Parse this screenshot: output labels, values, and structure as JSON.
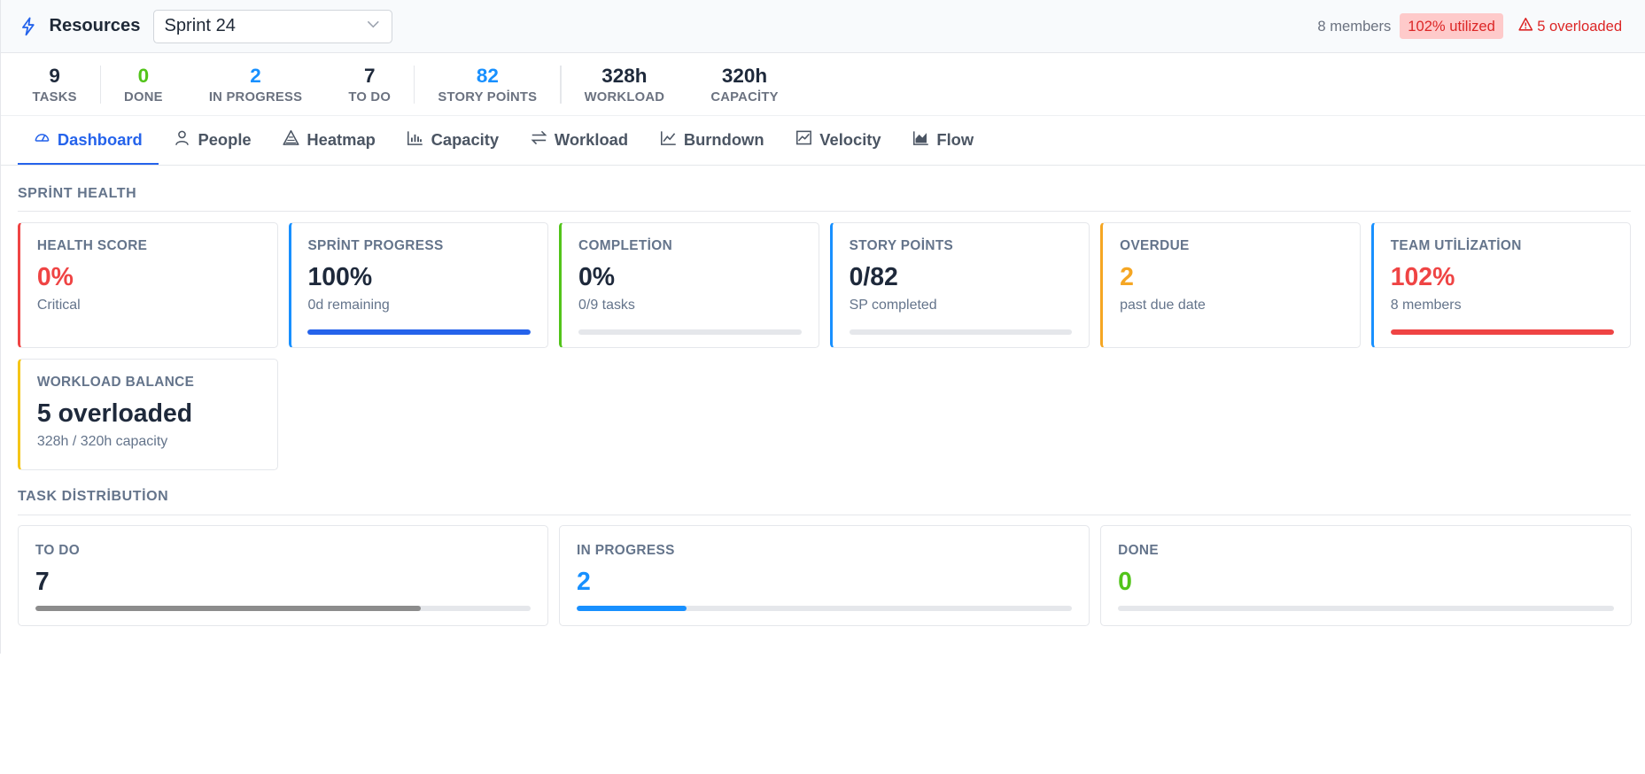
{
  "header": {
    "title": "Resources",
    "sprint_select": "Sprint 24",
    "members": "8 members",
    "utilized": "102% utilized",
    "overloaded": "5 overloaded"
  },
  "stats": [
    {
      "value": "9",
      "label": "TASKS",
      "color": "#1e293b"
    },
    {
      "value": "0",
      "label": "DONE",
      "color": "#52c41a"
    },
    {
      "value": "2",
      "label": "IN PROGRESS",
      "color": "#1890ff"
    },
    {
      "value": "7",
      "label": "TO DO",
      "color": "#1e293b"
    },
    {
      "value": "82",
      "label": "STORY POİNTS",
      "color": "#1890ff"
    },
    {
      "value": "328h",
      "label": "WORKLOAD",
      "color": "#1e293b"
    },
    {
      "value": "320h",
      "label": "CAPACİTY",
      "color": "#1e293b"
    }
  ],
  "tabs": [
    {
      "label": "Dashboard",
      "icon": "dashboard-icon"
    },
    {
      "label": "People",
      "icon": "user-icon"
    },
    {
      "label": "Heatmap",
      "icon": "heatmap-icon"
    },
    {
      "label": "Capacity",
      "icon": "bar-chart-icon"
    },
    {
      "label": "Workload",
      "icon": "swap-icon"
    },
    {
      "label": "Burndown",
      "icon": "line-chart-icon"
    },
    {
      "label": "Velocity",
      "icon": "stock-icon"
    },
    {
      "label": "Flow",
      "icon": "area-chart-icon"
    }
  ],
  "health": {
    "title": "SPRİNT HEALTH",
    "cards": [
      {
        "label": "HEALTH SCORE",
        "value": "0%",
        "sub": "Critical",
        "accent": "#ef4444",
        "value_color": "#ef4444",
        "bar": null
      },
      {
        "label": "SPRİNT PROGRESS",
        "value": "100%",
        "sub": "0d remaining",
        "accent": "#1890ff",
        "value_color": "#1e293b",
        "bar": 1.0,
        "bar_color": "#2563eb"
      },
      {
        "label": "COMPLETİON",
        "value": "0%",
        "sub": "0/9 tasks",
        "accent": "#52c41a",
        "value_color": "#1e293b",
        "bar": 0,
        "bar_color": "#52c41a"
      },
      {
        "label": "STORY POİNTS",
        "value": "0/82",
        "sub": "SP completed",
        "accent": "#1890ff",
        "value_color": "#1e293b",
        "bar": 0,
        "bar_color": "#1890ff"
      },
      {
        "label": "OVERDUE",
        "value": "2",
        "sub": "past due date",
        "accent": "#f5a623",
        "value_color": "#f5a623",
        "bar": null
      },
      {
        "label": "TEAM UTİLİZATİON",
        "value": "102%",
        "sub": "8 members",
        "accent": "#1890ff",
        "value_color": "#ef4444",
        "bar": 1.0,
        "bar_color": "#ef4444"
      },
      {
        "label": "WORKLOAD BALANCE",
        "value": "5 overloaded",
        "sub": "328h / 320h capacity",
        "accent": "#f5c518",
        "value_color": "#1e293b",
        "bar": null
      }
    ]
  },
  "distribution": {
    "title": "TASK DİSTRİBUTİON",
    "cards": [
      {
        "label": "TO DO",
        "value": "7",
        "value_color": "#1e293b",
        "fraction": 0.778,
        "bar_color": "#8c8c8c"
      },
      {
        "label": "IN PROGRESS",
        "value": "2",
        "value_color": "#1890ff",
        "fraction": 0.222,
        "bar_color": "#1890ff"
      },
      {
        "label": "DONE",
        "value": "0",
        "value_color": "#52c41a",
        "fraction": 0,
        "bar_color": "#52c41a"
      }
    ]
  }
}
